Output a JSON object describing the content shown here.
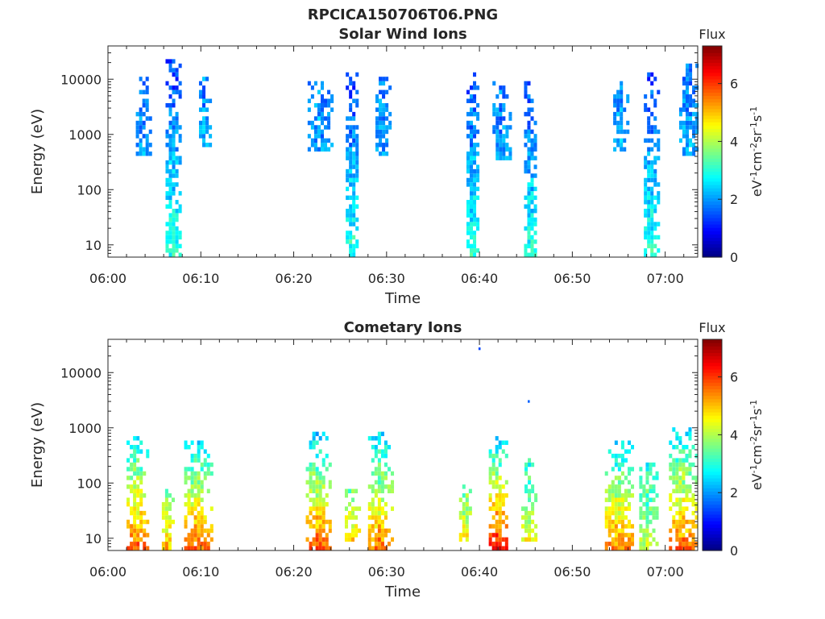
{
  "figure": {
    "main_title": "RPCICA150706T06.PNG",
    "background": "#ffffff",
    "axis_color": "#262626"
  },
  "chart_data": [
    {
      "type": "heatmap",
      "title": "Solar Wind Ions",
      "xlabel": "Time",
      "ylabel": "Energy (eV)",
      "x_ticks": [
        "06:00",
        "06:10",
        "06:20",
        "06:30",
        "06:40",
        "06:50",
        "07:00"
      ],
      "x_range_minutes": [
        0,
        63.5
      ],
      "y_scale": "log",
      "y_range": [
        6,
        40000
      ],
      "y_ticks": [
        10,
        100,
        1000,
        10000
      ],
      "grid": false,
      "colorbar": {
        "label": "Flux",
        "unit_base": "eV",
        "unit_1": "cm",
        "unit_2": "sr",
        "unit_3": "s",
        "exp_m1": "-1",
        "exp_m2": "-2",
        "range": [
          0,
          7.3
        ],
        "ticks": [
          0,
          2,
          4,
          6
        ],
        "colormap": "jet"
      },
      "bursts": [
        {
          "t_start": 6.2,
          "t_end": 7.8,
          "e_min": 6,
          "e_max": 20000,
          "flux_low": 3.0,
          "flux_high": 1.3
        },
        {
          "t_start": 3.0,
          "t_end": 4.4,
          "e_min": 400,
          "e_max": 10000,
          "flux_low": 2.0,
          "flux_high": 1.7
        },
        {
          "t_start": 9.8,
          "t_end": 11.0,
          "e_min": 600,
          "e_max": 12000,
          "flux_low": 2.1,
          "flux_high": 1.8
        },
        {
          "t_start": 21.5,
          "t_end": 24.2,
          "e_min": 500,
          "e_max": 9000,
          "flux_low": 2.1,
          "flux_high": 1.8
        },
        {
          "t_start": 25.6,
          "t_end": 27.0,
          "e_min": 6,
          "e_max": 12000,
          "flux_low": 3.0,
          "flux_high": 1.3
        },
        {
          "t_start": 28.8,
          "t_end": 30.4,
          "e_min": 400,
          "e_max": 10000,
          "flux_low": 2.1,
          "flux_high": 1.8
        },
        {
          "t_start": 38.6,
          "t_end": 40.0,
          "e_min": 6,
          "e_max": 13000,
          "flux_low": 3.0,
          "flux_high": 1.3
        },
        {
          "t_start": 41.4,
          "t_end": 43.2,
          "e_min": 300,
          "e_max": 8000,
          "flux_low": 2.1,
          "flux_high": 1.8
        },
        {
          "t_start": 44.8,
          "t_end": 46.2,
          "e_min": 6,
          "e_max": 10000,
          "flux_low": 3.0,
          "flux_high": 1.3
        },
        {
          "t_start": 54.4,
          "t_end": 56.0,
          "e_min": 500,
          "e_max": 9000,
          "flux_low": 2.2,
          "flux_high": 1.8
        },
        {
          "t_start": 57.7,
          "t_end": 59.2,
          "e_min": 6,
          "e_max": 12000,
          "flux_low": 3.0,
          "flux_high": 1.3
        },
        {
          "t_start": 61.5,
          "t_end": 63.5,
          "e_min": 400,
          "e_max": 18000,
          "flux_low": 2.1,
          "flux_high": 1.8
        }
      ]
    },
    {
      "type": "heatmap",
      "title": "Cometary Ions",
      "xlabel": "Time",
      "ylabel": "Energy (eV)",
      "x_ticks": [
        "06:00",
        "06:10",
        "06:20",
        "06:30",
        "06:40",
        "06:50",
        "07:00"
      ],
      "x_range_minutes": [
        0,
        63.5
      ],
      "y_scale": "log",
      "y_range": [
        6,
        40000
      ],
      "y_ticks": [
        10,
        100,
        1000,
        10000
      ],
      "grid": false,
      "colorbar": {
        "label": "Flux",
        "unit_base": "eV",
        "unit_1": "cm",
        "unit_2": "sr",
        "unit_3": "s",
        "exp_m1": "-1",
        "exp_m2": "-2",
        "range": [
          0,
          7.3
        ],
        "ticks": [
          0,
          2,
          4,
          6
        ],
        "colormap": "jet"
      },
      "bursts": [
        {
          "t_start": 2.0,
          "t_end": 4.2,
          "e_min": 6,
          "e_max": 700,
          "flux_low": 5.8,
          "flux_high": 2.4
        },
        {
          "t_start": 5.8,
          "t_end": 7.0,
          "e_min": 6,
          "e_max": 70,
          "flux_low": 5.0,
          "flux_high": 3.5
        },
        {
          "t_start": 8.2,
          "t_end": 11.0,
          "e_min": 6,
          "e_max": 500,
          "flux_low": 5.6,
          "flux_high": 2.5
        },
        {
          "t_start": 21.3,
          "t_end": 23.8,
          "e_min": 6,
          "e_max": 800,
          "flux_low": 5.7,
          "flux_high": 2.4
        },
        {
          "t_start": 25.5,
          "t_end": 27.0,
          "e_min": 8,
          "e_max": 70,
          "flux_low": 5.0,
          "flux_high": 3.5
        },
        {
          "t_start": 28.0,
          "t_end": 30.5,
          "e_min": 6,
          "e_max": 800,
          "flux_low": 5.5,
          "flux_high": 2.4
        },
        {
          "t_start": 37.8,
          "t_end": 39.2,
          "e_min": 8,
          "e_max": 80,
          "flux_low": 4.6,
          "flux_high": 3.5
        },
        {
          "t_start": 41.0,
          "t_end": 43.0,
          "e_min": 6,
          "e_max": 700,
          "flux_low": 6.3,
          "flux_high": 2.4
        },
        {
          "t_start": 44.5,
          "t_end": 46.0,
          "e_min": 8,
          "e_max": 250,
          "flux_low": 4.5,
          "flux_high": 2.8
        },
        {
          "t_start": 53.5,
          "t_end": 56.5,
          "e_min": 6,
          "e_max": 500,
          "flux_low": 5.5,
          "flux_high": 2.5
        },
        {
          "t_start": 57.2,
          "t_end": 59.0,
          "e_min": 6,
          "e_max": 200,
          "flux_low": 4.2,
          "flux_high": 2.8
        },
        {
          "t_start": 60.4,
          "t_end": 63.3,
          "e_min": 6,
          "e_max": 1000,
          "flux_low": 5.6,
          "flux_high": 2.4
        }
      ],
      "isolated_points": [
        {
          "t": 40.0,
          "e": 27000,
          "flux": 1.4
        },
        {
          "t": 45.3,
          "e": 3000,
          "flux": 1.6
        }
      ]
    }
  ]
}
